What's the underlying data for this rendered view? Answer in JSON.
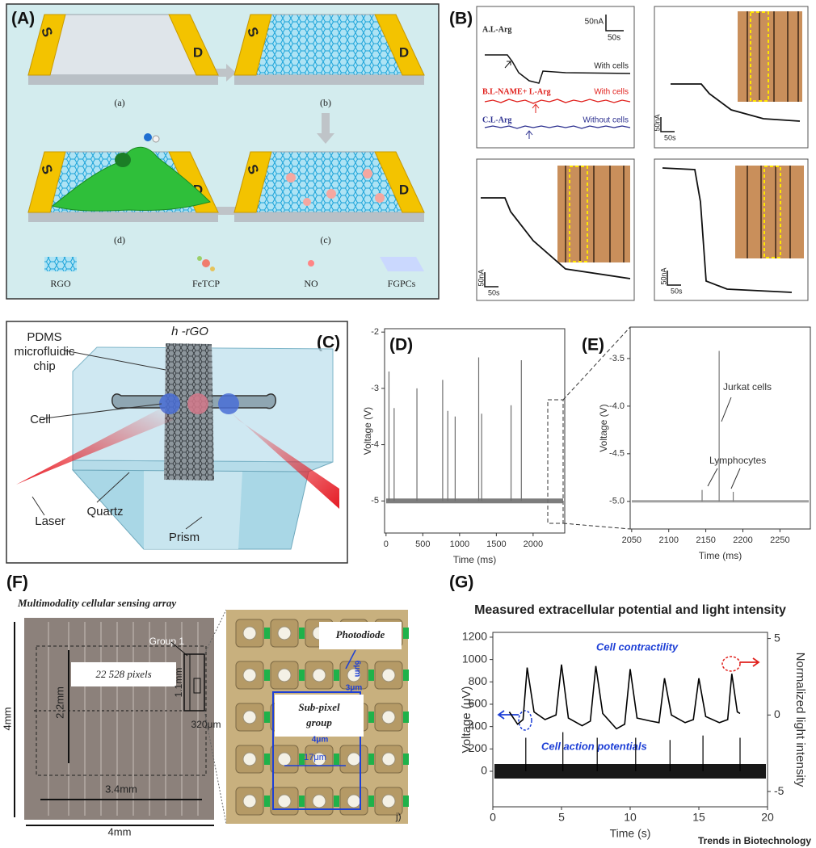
{
  "figure": {
    "panel_a": {
      "label": "(A)",
      "electrodes": [
        "S",
        "D"
      ],
      "steps": [
        "(a)",
        "(b)",
        "(c)",
        "(d)"
      ],
      "legend": [
        "RGO",
        "FeTCP",
        "NO",
        "FGPCs"
      ]
    },
    "panel_b": {
      "label": "(B)",
      "traces": [
        {
          "name": "A.L-Arg",
          "note": "With cells"
        },
        {
          "name": "B.L-NAME+ L-Arg",
          "note": "With cells"
        },
        {
          "name": "C.L-Arg",
          "note": "Without cells"
        }
      ],
      "scale_bar": {
        "current": "50nA",
        "time": "50s"
      }
    },
    "panel_c": {
      "label": "(C)",
      "chip": [
        "PDMS",
        "microfluidic",
        "chip"
      ],
      "film": "h -rGO",
      "cell": "Cell",
      "laser": "Laser",
      "quartz": "Quartz",
      "prism": "Prism"
    },
    "panel_f": {
      "label": "(F)",
      "title": "Multimodality cellular sensing array",
      "group": "Group 1",
      "pixels": "22 528 pixels",
      "height_inner": "2.2mm",
      "group_height": "1.1mm",
      "group_width": "320μm",
      "width_inner": "3.4mm",
      "chip_height": "4mm",
      "chip_width": "4mm",
      "photodiode": "Photodiode",
      "subpixel": [
        "Sub-pixel",
        "group"
      ],
      "pd_height": "6μm",
      "pd_gap": "3μm",
      "gap": "4μm",
      "pitch": "17μm",
      "corner": "j)"
    },
    "footer": "Trends in Biotechnology"
  },
  "chart_data": [
    {
      "type": "line",
      "label": "(D)",
      "x_label": "Time (ms)",
      "y_label": "Voltage (V)",
      "xlim": [
        -20,
        2430
      ],
      "ylim": [
        -5.57,
        -1.94
      ],
      "xticks": [
        0,
        500,
        1000,
        1500,
        2000
      ],
      "yticks": [
        -2,
        -3,
        -4,
        -5
      ],
      "series": [
        {
          "mode": "spikes",
          "color": "#6f6f6f",
          "baseline": -5,
          "x": [
            40,
            110,
            420,
            770,
            840,
            940,
            1260,
            1300,
            1700,
            1840
          ],
          "values": [
            -2.7,
            -3.35,
            -3.0,
            -2.85,
            -3.4,
            -3.5,
            -2.45,
            -3.45,
            -3.3,
            -2.5
          ]
        }
      ]
    },
    {
      "type": "line",
      "label": "(E)",
      "x_label": "Time (ms)",
      "y_label": "Voltage (V)",
      "xlim": [
        2048,
        2291
      ],
      "ylim": [
        -5.29,
        -3.17
      ],
      "xticks": [
        2050,
        2100,
        2150,
        2200,
        2250
      ],
      "yticks": [
        -3.5,
        {
          "value": -4,
          "label": "-4.0"
        },
        -4.5,
        {
          "value": -5,
          "label": "-5.0"
        }
      ],
      "annotations": [
        "Jurkat cells",
        "Lymphocytes"
      ],
      "series": [
        {
          "mode": "spikes",
          "color": "#7a7a7a",
          "baseline": -5,
          "x": [
            2145,
            2168,
            2187
          ],
          "values": [
            -4.88,
            -3.42,
            -4.9
          ]
        }
      ]
    },
    {
      "type": "line",
      "label": "(G)",
      "title": "Measured extracellular potential and light intensity",
      "x_label": "Time (s)",
      "y_label": "Voltage (μV)",
      "y2_label": "Normalized light intensity",
      "xlim": [
        0,
        20
      ],
      "ylim": [
        -318,
        1243
      ],
      "y2lim": [
        -6.0,
        5.4
      ],
      "xticks": [
        0,
        5,
        10,
        15,
        20
      ],
      "yticks": [
        0,
        200,
        400,
        600,
        800,
        1000,
        1200
      ],
      "y2ticks": [
        -5,
        0,
        5
      ],
      "annotations": [
        "Cell contractility",
        "Cell action potentials"
      ],
      "series": [
        {
          "mode": "spikes",
          "color": "#000000",
          "baseline": 0,
          "x": [
            2.4,
            5.1,
            7.6,
            10.4,
            12.9,
            15.3,
            18.0
          ],
          "values": [
            300,
            350,
            300,
            300,
            280,
            320,
            300
          ]
        },
        {
          "mode": "line",
          "axis": "y2",
          "color": "#000000",
          "x": [
            1.2,
            1.8,
            2.2,
            2.5,
            3.0,
            3.8,
            4.6,
            5.0,
            5.5,
            6.5,
            7.1,
            7.5,
            8.0,
            9.0,
            9.6,
            10.0,
            10.5,
            11.5,
            12.1,
            12.5,
            13.0,
            14.0,
            14.6,
            15.0,
            15.5,
            16.5,
            17.1,
            17.4,
            17.8,
            18.0
          ],
          "values": [
            0.2,
            -0.6,
            -0.3,
            3.1,
            0.2,
            -0.3,
            0.0,
            3.3,
            -0.2,
            -0.7,
            -0.4,
            3.2,
            0.1,
            -0.9,
            -0.6,
            3.0,
            -0.2,
            -0.4,
            -0.5,
            2.4,
            0.0,
            -0.5,
            -0.3,
            2.4,
            -0.1,
            -0.5,
            -0.3,
            2.7,
            0.2,
            0.1
          ]
        }
      ]
    }
  ]
}
